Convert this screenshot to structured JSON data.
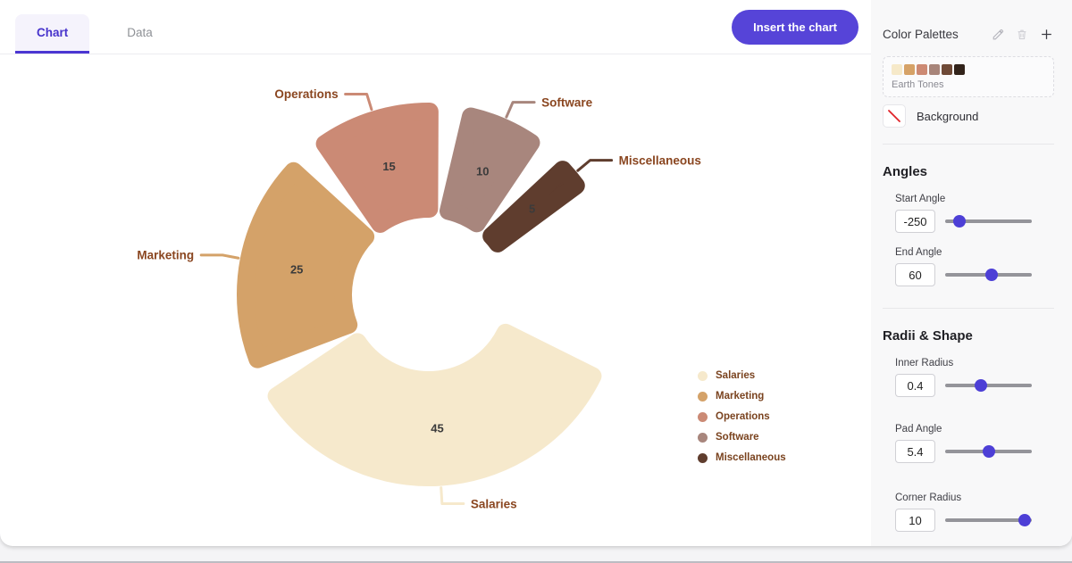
{
  "tabs": [
    {
      "label": "Chart",
      "active": true
    },
    {
      "label": "Data",
      "active": false
    }
  ],
  "toolbar": {
    "insert_button_label": "Insert the chart"
  },
  "sidebar": {
    "title": "Color Palettes",
    "header_icons": [
      "edit-icon",
      "trash-icon",
      "add-icon"
    ],
    "palette": {
      "name": "Earth Tones",
      "colors": [
        "#f6e9c9",
        "#d6a267",
        "#cd8a74",
        "#a8857a",
        "#6f4a37",
        "#32231a"
      ]
    },
    "background_label": "Background",
    "angles": {
      "title": "Angles",
      "controls": [
        {
          "label": "Start Angle",
          "value": "-250",
          "slider_percent": 16
        },
        {
          "label": "End Angle",
          "value": "60",
          "slider_percent": 54
        }
      ]
    },
    "radii": {
      "title": "Radii & Shape",
      "controls": [
        {
          "label": "Inner Radius",
          "value": "0.4",
          "slider_percent": 41
        },
        {
          "label": "Pad Angle",
          "value": "5.4",
          "slider_percent": 51
        },
        {
          "label": "Corner Radius",
          "value": "10",
          "slider_percent": 92
        }
      ]
    }
  },
  "chart_data": {
    "type": "pie",
    "categories": [
      "Salaries",
      "Marketing",
      "Operations",
      "Software",
      "Miscellaneous"
    ],
    "values": [
      45,
      25,
      15,
      10,
      5
    ],
    "colors": [
      "#f6e9cc",
      "#d4a269",
      "#cb8a75",
      "#a8867d",
      "#5f3d2e"
    ],
    "params": {
      "start_angle": -250,
      "end_angle": 60,
      "inner_radius": 0.4,
      "pad_angle": 5.4,
      "corner_radius": 10
    },
    "legend": {
      "position": "right",
      "entries": [
        "Salaries",
        "Marketing",
        "Operations",
        "Software",
        "Miscellaneous"
      ]
    },
    "label_color": "#8a4620",
    "value_color": "#3b3b3b"
  }
}
